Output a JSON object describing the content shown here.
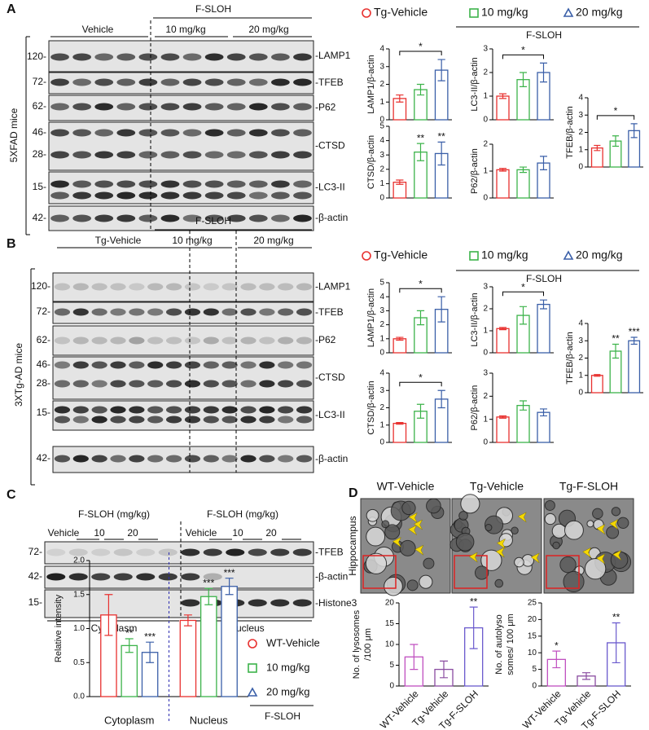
{
  "panel_A": {
    "letter": "A",
    "mice": "5XFAD mice",
    "headers": {
      "vehicle": "Vehicle",
      "group": "F-SLOH",
      "low": "10 mg/kg",
      "high": "20 mg/kg"
    },
    "markers": [
      "120-",
      "72-",
      "62-",
      "46-",
      "28-",
      "15-",
      "42-"
    ],
    "proteins": [
      "-LAMP1",
      "-TFEB",
      "-P62",
      "-CTSD",
      "-LC3-II",
      "-β-actin"
    ],
    "legend": [
      {
        "label": "Tg-Vehicle",
        "color": "#e8312f",
        "marker": "circle"
      },
      {
        "label": "10 mg/kg",
        "color": "#3cb34a",
        "marker": "square"
      },
      {
        "label": "20 mg/kg",
        "color": "#3a5fa8",
        "marker": "triangle"
      }
    ],
    "legend_group": "F-SLOH"
  },
  "panel_B": {
    "letter": "B",
    "mice": "3XTg-AD mice",
    "headers": {
      "vehicle": "Tg-Vehicle",
      "group": "F-SLOH",
      "low": "10 mg/kg",
      "high": "20 mg/kg"
    },
    "markers": [
      "120-",
      "72-",
      "62-",
      "46-",
      "28-",
      "15-",
      "42-"
    ],
    "proteins": [
      "-LAMP1",
      "-TFEB",
      "-P62",
      "-CTSD",
      "-LC3-II",
      "-β-actin"
    ],
    "legend": [
      {
        "label": "Tg-Vehicle",
        "color": "#e8312f",
        "marker": "circle"
      },
      {
        "label": "10 mg/kg",
        "color": "#3cb34a",
        "marker": "square"
      },
      {
        "label": "20 mg/kg",
        "color": "#3a5fa8",
        "marker": "triangle"
      }
    ],
    "legend_group": "F-SLOH"
  },
  "panel_C": {
    "letter": "C",
    "headers": [
      "F-SLOH (mg/kg)",
      "F-SLOH (mg/kg)"
    ],
    "doses": [
      "Vehicle",
      "10",
      "20",
      "Vehicle",
      "10",
      "20"
    ],
    "markers": [
      "72-",
      "42-",
      "15-"
    ],
    "proteins": [
      "-TFEB",
      "-β-actin",
      "-Histone3"
    ],
    "fractions": [
      "Cytoplasm",
      "Nucleus"
    ]
  },
  "panel_D": {
    "letter": "D",
    "region": "Hippocampus",
    "groups": [
      "WT-Vehicle",
      "Tg-Vehicle",
      "Tg-F-SLOH"
    ]
  },
  "chart_data": [
    {
      "type": "bar",
      "y_label": "LAMP1/β-actin",
      "categories": [
        null,
        null,
        null
      ],
      "values": [
        1.2,
        1.7,
        2.8
      ],
      "errors": [
        0.2,
        0.3,
        0.6
      ],
      "colors": [
        "#e8312f",
        "#3cb34a",
        "#3a5fa8"
      ],
      "ylim": [
        0,
        4
      ],
      "yticks": [
        0,
        1,
        2,
        3,
        4
      ],
      "significance": [
        null,
        null,
        "*"
      ],
      "bracket": true
    },
    {
      "type": "bar",
      "y_label": "LC3-II/β-actin",
      "categories": [
        null,
        null,
        null
      ],
      "values": [
        1.0,
        1.7,
        2.0
      ],
      "errors": [
        0.1,
        0.3,
        0.4
      ],
      "colors": [
        "#e8312f",
        "#3cb34a",
        "#3a5fa8"
      ],
      "ylim": [
        0,
        3
      ],
      "yticks": [
        0,
        1,
        2,
        3
      ],
      "significance": [
        null,
        null,
        "*"
      ],
      "bracket": true
    },
    {
      "type": "bar",
      "y_label": "TFEB/β-actin",
      "categories": [
        null,
        null,
        null
      ],
      "values": [
        1.1,
        1.5,
        2.1
      ],
      "errors": [
        0.15,
        0.3,
        0.4
      ],
      "colors": [
        "#e8312f",
        "#3cb34a",
        "#3a5fa8"
      ],
      "ylim": [
        0,
        4
      ],
      "yticks": [
        0,
        1,
        2,
        3,
        4
      ],
      "significance": [
        null,
        null,
        "*"
      ],
      "bracket": true
    },
    {
      "type": "bar",
      "y_label": "CTSD/β-actin",
      "categories": [
        null,
        null,
        null
      ],
      "values": [
        1.1,
        3.2,
        3.1
      ],
      "errors": [
        0.15,
        0.6,
        0.8
      ],
      "colors": [
        "#e8312f",
        "#3cb34a",
        "#3a5fa8"
      ],
      "ylim": [
        0,
        5
      ],
      "yticks": [
        0,
        1,
        2,
        3,
        4,
        5
      ],
      "significance": [
        null,
        "**",
        "**"
      ],
      "bracket": false
    },
    {
      "type": "bar",
      "y_label": "P62/β-actin",
      "categories": [
        null,
        null,
        null
      ],
      "values": [
        1.05,
        1.05,
        1.3
      ],
      "errors": [
        0.05,
        0.1,
        0.25
      ],
      "colors": [
        "#e8312f",
        "#3cb34a",
        "#3a5fa8"
      ],
      "ylim": [
        0,
        2
      ],
      "yticks": [
        0,
        1,
        2
      ],
      "significance": [
        null,
        null,
        null
      ],
      "bracket": false
    },
    {
      "type": "bar",
      "y_label": "LAMP1/β-actin",
      "categories": [
        null,
        null,
        null
      ],
      "values": [
        1.0,
        2.5,
        3.1
      ],
      "errors": [
        0.1,
        0.5,
        0.9
      ],
      "colors": [
        "#e8312f",
        "#3cb34a",
        "#3a5fa8"
      ],
      "ylim": [
        0,
        5
      ],
      "yticks": [
        0,
        1,
        2,
        3,
        4,
        5
      ],
      "significance": [
        null,
        null,
        "*"
      ],
      "bracket": true
    },
    {
      "type": "bar",
      "y_label": "LC3-II/β-actin",
      "categories": [
        null,
        null,
        null
      ],
      "values": [
        1.1,
        1.7,
        2.2
      ],
      "errors": [
        0.05,
        0.4,
        0.2
      ],
      "colors": [
        "#e8312f",
        "#3cb34a",
        "#3a5fa8"
      ],
      "ylim": [
        0,
        3
      ],
      "yticks": [
        0,
        1,
        2,
        3
      ],
      "significance": [
        null,
        null,
        "*"
      ],
      "bracket": true
    },
    {
      "type": "bar",
      "y_label": "TFEB/β-actin",
      "categories": [
        null,
        null,
        null
      ],
      "values": [
        1.0,
        2.4,
        3.0
      ],
      "errors": [
        0.05,
        0.4,
        0.2
      ],
      "colors": [
        "#e8312f",
        "#3cb34a",
        "#3a5fa8"
      ],
      "ylim": [
        0,
        4
      ],
      "yticks": [
        0,
        1,
        2,
        3,
        4
      ],
      "significance": [
        null,
        "**",
        "***"
      ],
      "bracket": false
    },
    {
      "type": "bar",
      "y_label": "CTSD/β-actin",
      "categories": [
        null,
        null,
        null
      ],
      "values": [
        1.1,
        1.8,
        2.5
      ],
      "errors": [
        0.05,
        0.4,
        0.5
      ],
      "colors": [
        "#e8312f",
        "#3cb34a",
        "#3a5fa8"
      ],
      "ylim": [
        0,
        4
      ],
      "yticks": [
        0,
        1,
        2,
        3,
        4
      ],
      "significance": [
        null,
        null,
        "*"
      ],
      "bracket": true
    },
    {
      "type": "bar",
      "y_label": "P62/β-actin",
      "categories": [
        null,
        null,
        null
      ],
      "values": [
        1.1,
        1.6,
        1.3
      ],
      "errors": [
        0.05,
        0.2,
        0.15
      ],
      "colors": [
        "#e8312f",
        "#3cb34a",
        "#3a5fa8"
      ],
      "ylim": [
        0,
        3
      ],
      "yticks": [
        0,
        1,
        2,
        3
      ],
      "significance": [
        null,
        null,
        null
      ],
      "bracket": false
    },
    {
      "type": "bar",
      "y_label": "Relative intensity",
      "categories": [
        "Cytoplasm",
        "Nucleus"
      ],
      "series": [
        {
          "name": "WT-Vehicle",
          "color": "#e8312f",
          "marker": "circle",
          "values": [
            1.2,
            1.12
          ],
          "errors": [
            0.3,
            0.08
          ],
          "significance": [
            null,
            null
          ]
        },
        {
          "name": "10 mg/kg",
          "color": "#3cb34a",
          "marker": "square",
          "values": [
            0.75,
            1.47
          ],
          "errors": [
            0.1,
            0.12
          ],
          "significance": [
            "**",
            "***"
          ]
        },
        {
          "name": "20 mg/kg",
          "color": "#3a5fa8",
          "marker": "triangle",
          "values": [
            0.65,
            1.62
          ],
          "errors": [
            0.15,
            0.12
          ],
          "significance": [
            "***",
            "***"
          ]
        }
      ],
      "legend_group": "F-SLOH",
      "ylim": [
        0,
        2
      ],
      "yticks": [
        {
          "value": 0,
          "label": "0.0"
        },
        {
          "value": 0.5,
          "label": "0.5"
        },
        {
          "value": 1,
          "label": "1.0"
        },
        {
          "value": 1.5,
          "label": "1.5"
        },
        {
          "value": 2,
          "label": "2.0"
        }
      ]
    },
    {
      "type": "bar",
      "y_label": [
        "No. of lysosomes",
        "/100 μm"
      ],
      "categories": [
        "WT-Vehicle",
        "Tg-Vehicle",
        "Tg-F-SLOH"
      ],
      "values": [
        7,
        4,
        14
      ],
      "errors": [
        3,
        2,
        5
      ],
      "colors": [
        "#c04fc0",
        "#8a4ca0",
        "#6a5acd"
      ],
      "ylim": [
        0,
        20
      ],
      "yticks": [
        0,
        5,
        10,
        15,
        20
      ],
      "significance": [
        null,
        null,
        "**"
      ],
      "bracket": false
    },
    {
      "type": "bar",
      "y_label": [
        "No. of autolyso",
        "somes/ 100 μm"
      ],
      "categories": [
        "WT-Vehicle",
        "Tg-Vehicle",
        "Tg-F-SLOH"
      ],
      "values": [
        8,
        3,
        13
      ],
      "errors": [
        2.5,
        1,
        6
      ],
      "colors": [
        "#c04fc0",
        "#8a4ca0",
        "#6a5acd"
      ],
      "ylim": [
        0,
        25
      ],
      "yticks": [
        0,
        5,
        10,
        15,
        20,
        25
      ],
      "significance": [
        "*",
        null,
        "**"
      ],
      "bracket": false
    }
  ]
}
